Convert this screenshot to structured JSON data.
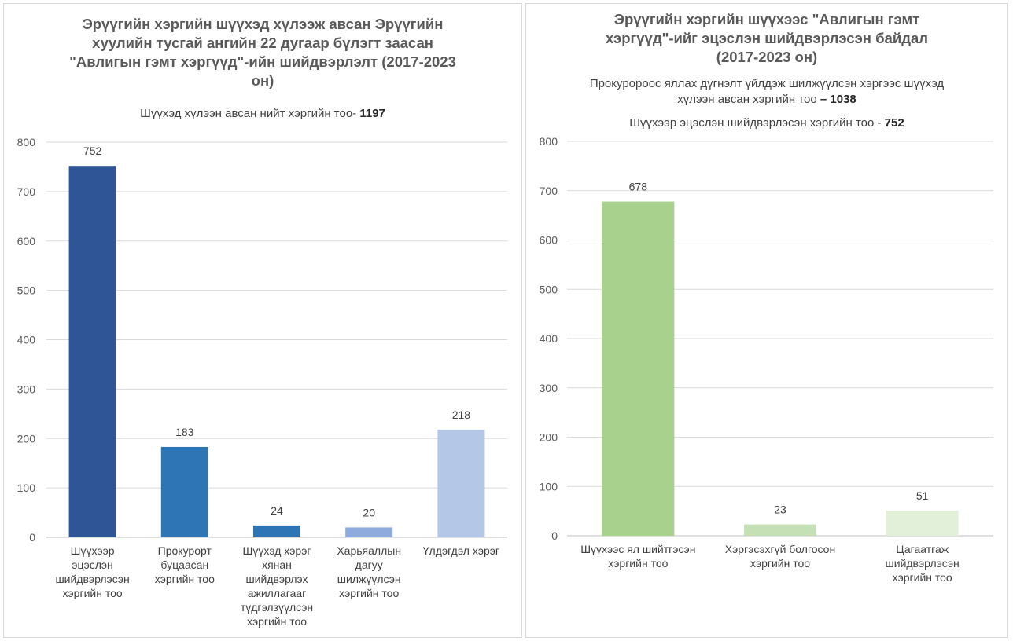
{
  "chart_data": [
    {
      "type": "bar",
      "title": "Эрүүгийн хэргийн шүүхэд хүлээж авсан Эрүүгийн хуулийн тусгай ангийн 22 дугаар бүлэгт заасан \"Авлигын гэмт хэргүүд\"-ийн шийдвэрлэлт (2017-2023 он)",
      "subtitle": {
        "lines": [
          {
            "text": "Шүүхэд хүлээн авсан нийт хэргийн тоо- ",
            "value": "1197"
          }
        ]
      },
      "categories": [
        "Шүүхээр эцэслэн шийдвэрлэсэн хэргийн тоо",
        "Прокурорт буцаасан хэргийн тоо",
        "Шүүхэд хэрэг хянан шийдвэрлэх ажиллагааг түдгэлзүүлсэн хэргийн тоо",
        "Харьяаллын дагуу шилжүүлсэн хэргийн тоо",
        "Үлдэгдэл хэрэг"
      ],
      "values": [
        752,
        183,
        24,
        20,
        218
      ],
      "colors": [
        "#2f5597",
        "#2e75b6",
        "#2e75b6",
        "#8faadc",
        "#b4c7e7"
      ],
      "ylim": [
        0,
        800
      ],
      "yticks": [
        "0",
        "100",
        "200",
        "300",
        "400",
        "500",
        "600",
        "700",
        "800"
      ],
      "grid": true,
      "xlabel": "",
      "ylabel": ""
    },
    {
      "type": "bar",
      "title": "Эрүүгийн хэргийн шүүхээс \"Авлигын гэмт хэргүүд\"-ийг эцэслэн шийдвэрлэсэн байдал (2017-2023 он)",
      "subtitle": {
        "lines": [
          {
            "text": "Прокуророос яллах дүгнэлт үйлдэж шилжүүлсэн хэргээс шүүхэд хүлээн авсан хэргийн тоо ",
            "value": "– 1038"
          },
          {
            "text": "Шүүхээр эцэслэн шийдвэрлэсэн хэргийн тоо - ",
            "value": "752"
          }
        ]
      },
      "categories": [
        "Шүүхээс ял шийтгэсэн хэргийн тоо",
        "Хэргэсэхгүй болгосон хэргийн тоо",
        "Цагаатгаж шийдвэрлэсэн хэргийн тоо"
      ],
      "values": [
        678,
        23,
        51
      ],
      "colors": [
        "#a9d18e",
        "#c5e0b4",
        "#e2f0d9"
      ],
      "ylim": [
        0,
        800
      ],
      "yticks": [
        "0",
        "100",
        "200",
        "300",
        "400",
        "500",
        "600",
        "700",
        "800"
      ],
      "grid": true,
      "xlabel": "",
      "ylabel": ""
    }
  ]
}
